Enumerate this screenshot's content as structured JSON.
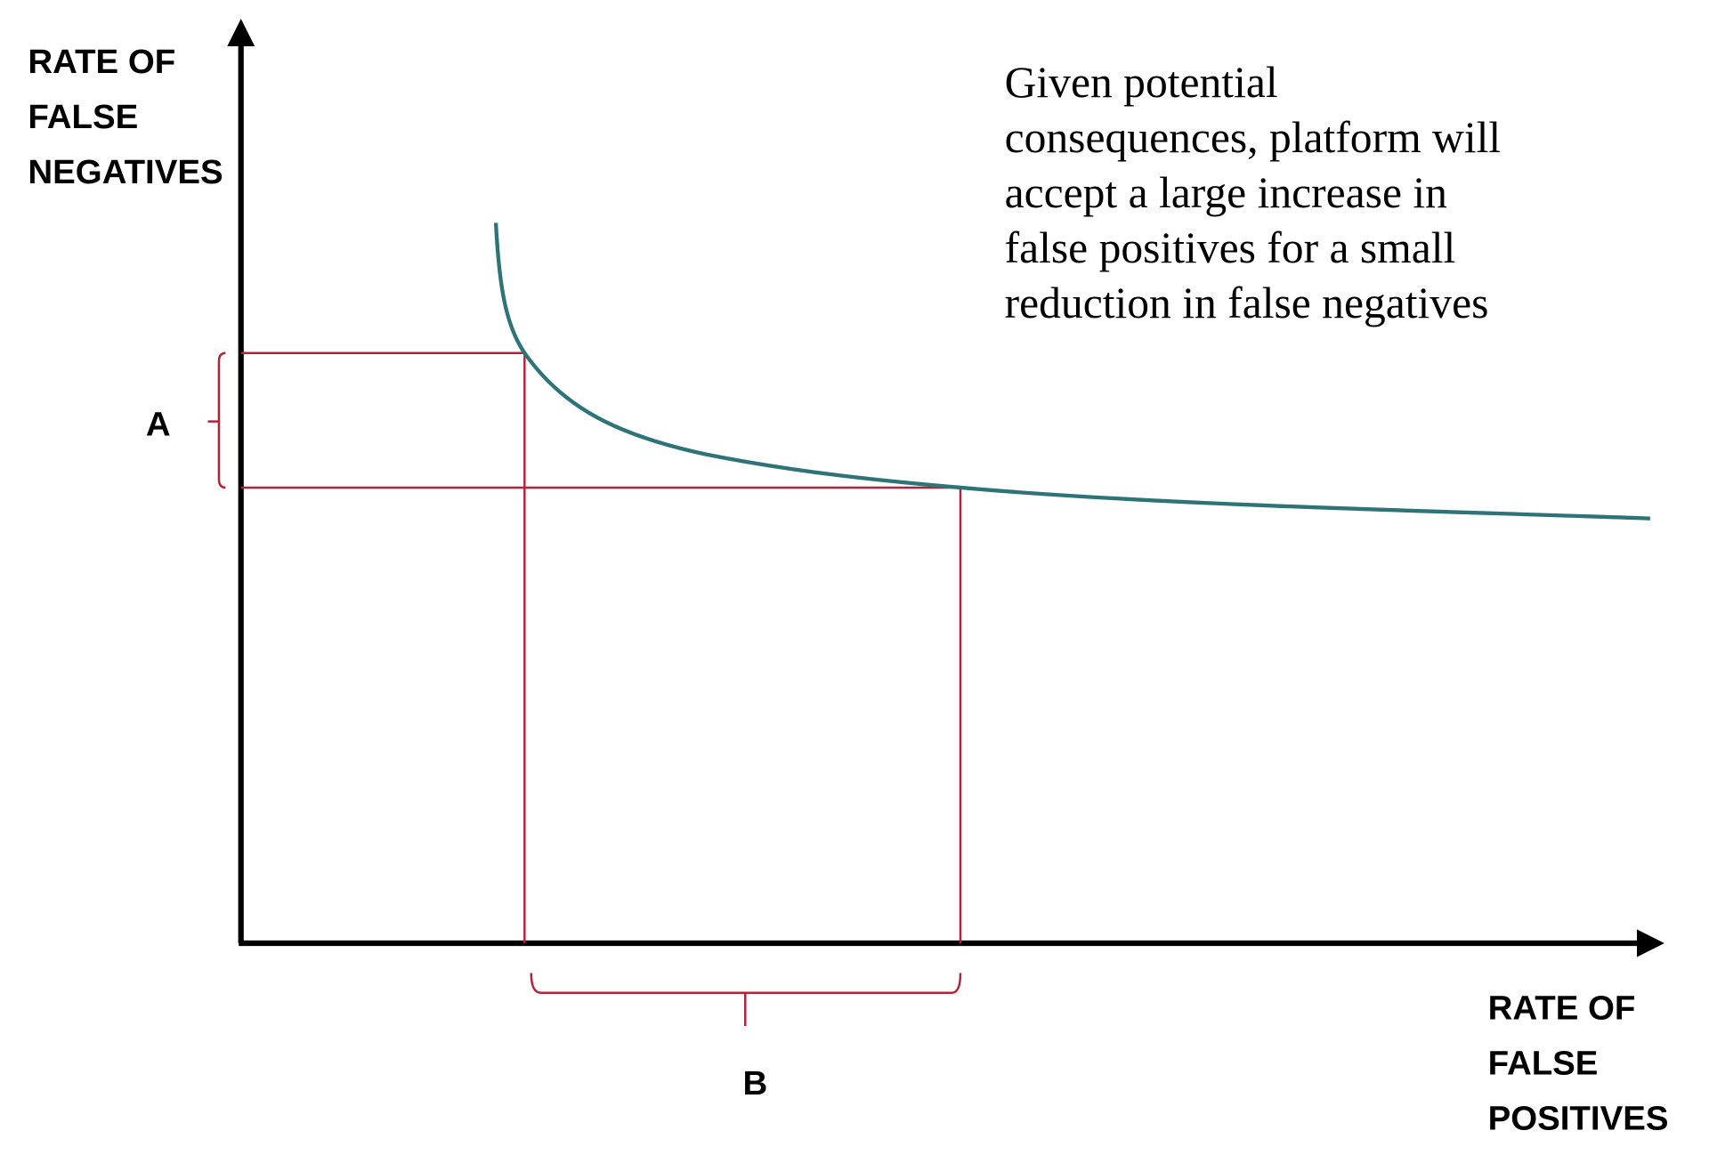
{
  "y_axis_label": [
    "RATE OF",
    "FALSE",
    "NEGATIVES"
  ],
  "x_axis_label": [
    "RATE OF",
    "FALSE",
    "POSITIVES"
  ],
  "annotation": [
    "Given potential",
    "consequences, platform will",
    "accept a large increase in",
    "false positives for a small",
    "reduction in false negatives"
  ],
  "bracket_labels": {
    "a": "A",
    "b": "B"
  }
}
